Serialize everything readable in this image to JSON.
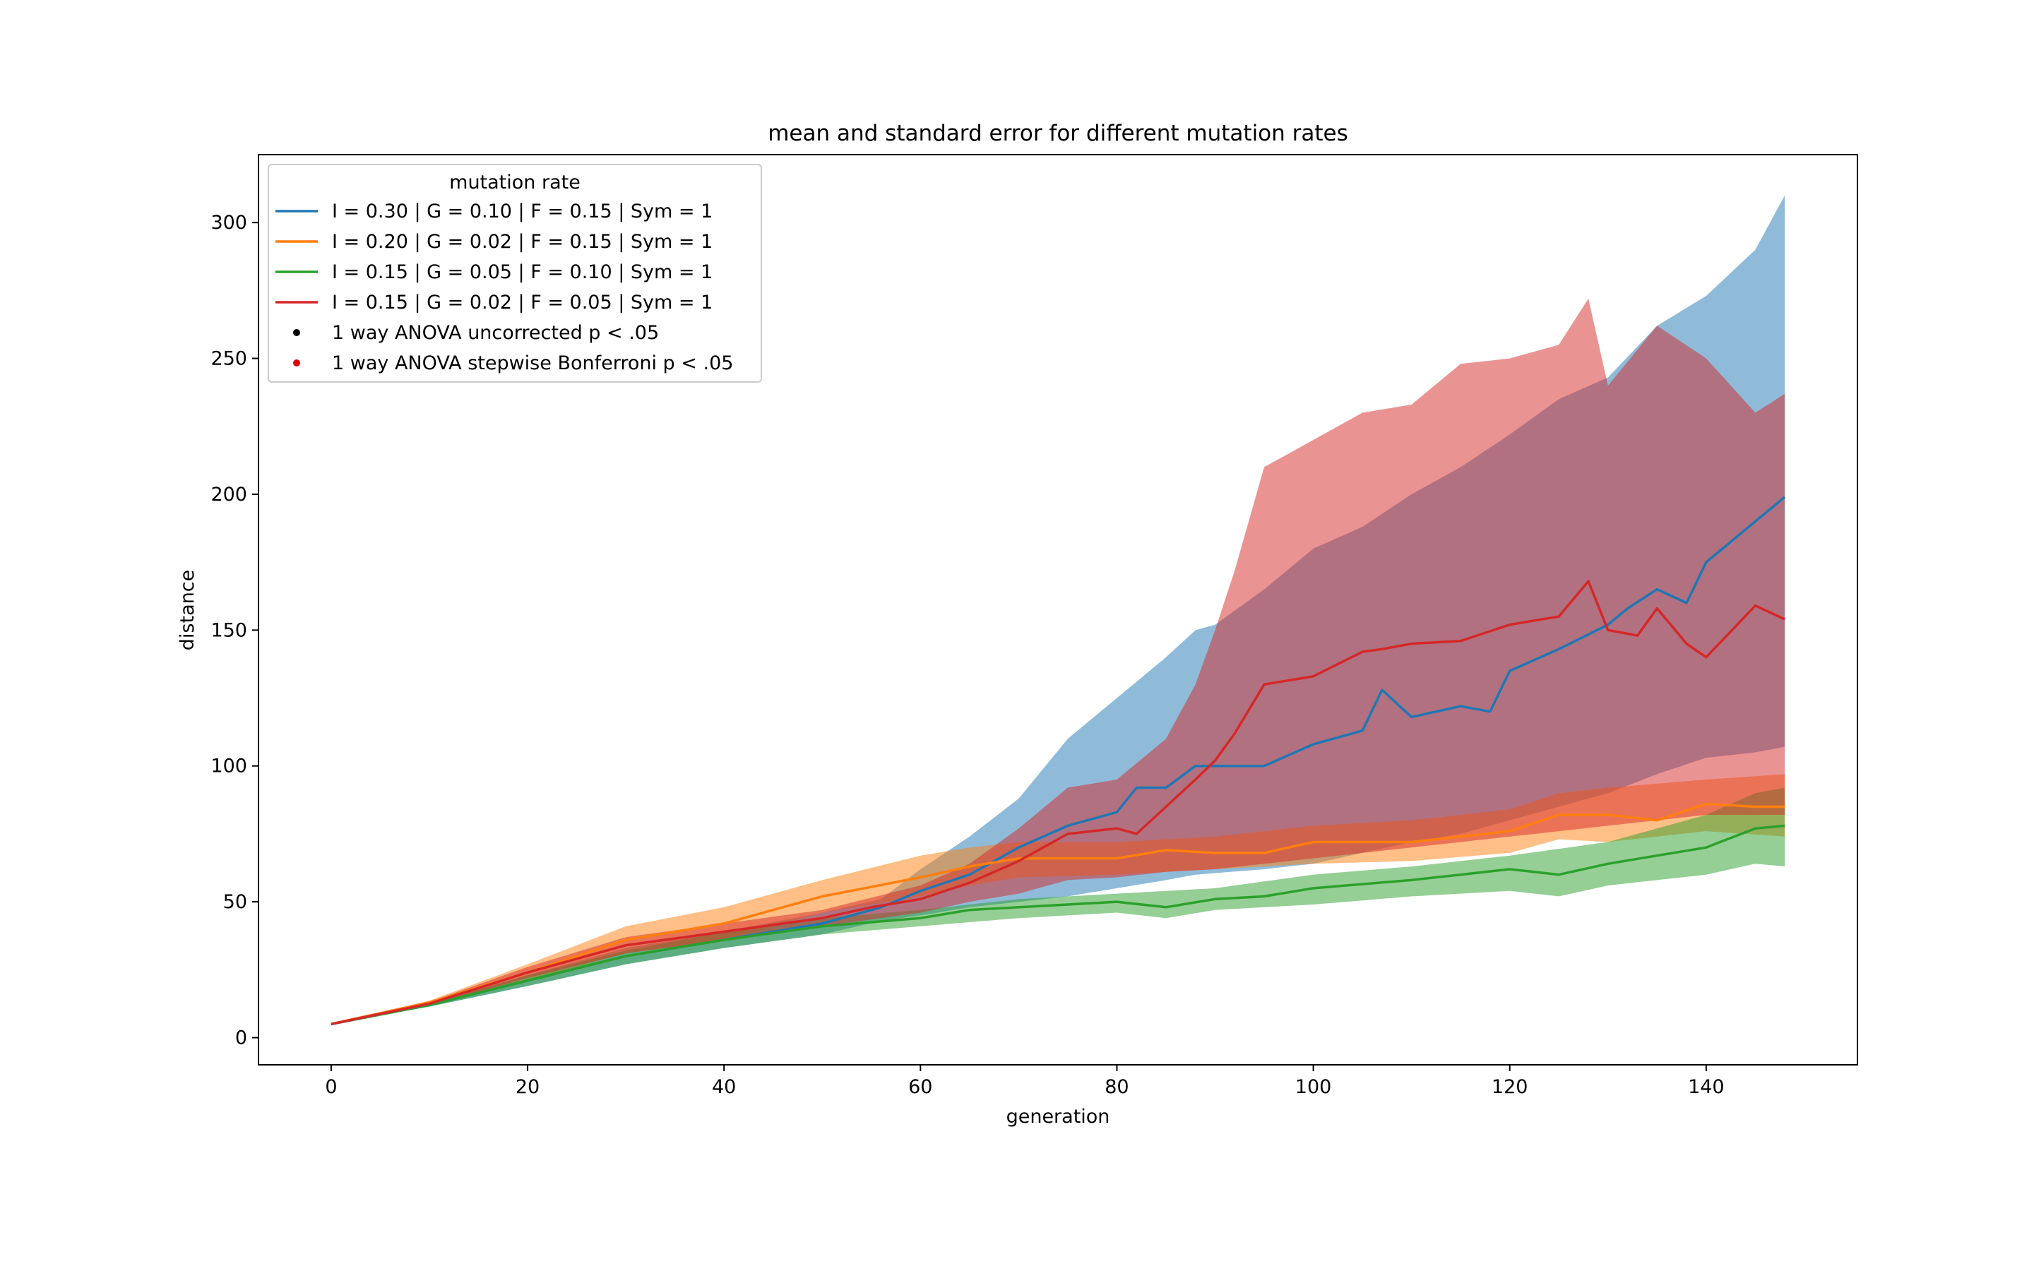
{
  "chart_data": {
    "type": "line",
    "title": "mean and standard error for different mutation rates",
    "xlabel": "generation",
    "ylabel": "distance",
    "xlim": [
      -7.4,
      155.4
    ],
    "ylim": [
      -10,
      325
    ],
    "xticks": [
      0,
      20,
      40,
      60,
      80,
      100,
      120,
      140
    ],
    "yticks": [
      0,
      50,
      100,
      150,
      200,
      250,
      300
    ],
    "grid": false,
    "legend": {
      "title": "mutation rate",
      "placement": "upper-left",
      "markers": [
        {
          "label": "1 way ANOVA uncorrected p < .05",
          "color": "#000000"
        },
        {
          "label": "1 way ANOVA stepwise Bonferroni p < .05",
          "color": "#e00000"
        }
      ]
    },
    "series": [
      {
        "name": "I = 0.30 | G = 0.10 | F = 0.15 | Sym = 1",
        "color": "#1f77b4",
        "band_opacity": 0.5,
        "mean_knots": [
          [
            0,
            5
          ],
          [
            10,
            12
          ],
          [
            20,
            21
          ],
          [
            30,
            30
          ],
          [
            40,
            36
          ],
          [
            50,
            42
          ],
          [
            56,
            48
          ],
          [
            60,
            54
          ],
          [
            65,
            60
          ],
          [
            70,
            70
          ],
          [
            75,
            78
          ],
          [
            80,
            83
          ],
          [
            82,
            92
          ],
          [
            85,
            92
          ],
          [
            88,
            100
          ],
          [
            95,
            100
          ],
          [
            100,
            108
          ],
          [
            105,
            113
          ],
          [
            107,
            128
          ],
          [
            110,
            118
          ],
          [
            115,
            122
          ],
          [
            118,
            120
          ],
          [
            120,
            135
          ],
          [
            125,
            143
          ],
          [
            130,
            152
          ],
          [
            132,
            158
          ],
          [
            135,
            165
          ],
          [
            138,
            160
          ],
          [
            140,
            175
          ],
          [
            145,
            190
          ],
          [
            148,
            199
          ]
        ],
        "upper_knots": [
          [
            0,
            5
          ],
          [
            10,
            12.6
          ],
          [
            20,
            23
          ],
          [
            30,
            33
          ],
          [
            40,
            39
          ],
          [
            50,
            46
          ],
          [
            56,
            51
          ],
          [
            60,
            62
          ],
          [
            65,
            74
          ],
          [
            70,
            88
          ],
          [
            75,
            110
          ],
          [
            80,
            125
          ],
          [
            85,
            140
          ],
          [
            88,
            150
          ],
          [
            90,
            152
          ],
          [
            95,
            165
          ],
          [
            100,
            180
          ],
          [
            105,
            188
          ],
          [
            110,
            200
          ],
          [
            115,
            210
          ],
          [
            120,
            222
          ],
          [
            125,
            235
          ],
          [
            130,
            243
          ],
          [
            135,
            262
          ],
          [
            140,
            273
          ],
          [
            145,
            290
          ],
          [
            148,
            310
          ]
        ],
        "lower_knots": [
          [
            0,
            5
          ],
          [
            10,
            11.4
          ],
          [
            20,
            19
          ],
          [
            30,
            27
          ],
          [
            40,
            33
          ],
          [
            50,
            38
          ],
          [
            56,
            43
          ],
          [
            60,
            45
          ],
          [
            65,
            48
          ],
          [
            70,
            50
          ],
          [
            75,
            52
          ],
          [
            80,
            55
          ],
          [
            85,
            58
          ],
          [
            88,
            60
          ],
          [
            95,
            62
          ],
          [
            100,
            64
          ],
          [
            105,
            68
          ],
          [
            110,
            72
          ],
          [
            115,
            75
          ],
          [
            120,
            80
          ],
          [
            125,
            85
          ],
          [
            130,
            90
          ],
          [
            135,
            97
          ],
          [
            140,
            103
          ],
          [
            145,
            105
          ],
          [
            148,
            107
          ]
        ]
      },
      {
        "name": "I = 0.20 | G = 0.02 | F = 0.15 | Sym = 1",
        "color": "#ff7f0e",
        "band_opacity": 0.5,
        "mean_knots": [
          [
            0,
            5
          ],
          [
            10,
            13
          ],
          [
            20,
            24
          ],
          [
            30,
            36
          ],
          [
            40,
            42
          ],
          [
            50,
            52
          ],
          [
            60,
            59
          ],
          [
            65,
            63
          ],
          [
            70,
            66
          ],
          [
            80,
            66
          ],
          [
            85,
            69
          ],
          [
            90,
            68
          ],
          [
            95,
            68
          ],
          [
            100,
            72
          ],
          [
            110,
            72
          ],
          [
            115,
            74
          ],
          [
            120,
            76
          ],
          [
            125,
            82
          ],
          [
            130,
            82
          ],
          [
            135,
            80
          ],
          [
            140,
            86
          ],
          [
            145,
            85
          ],
          [
            148,
            85
          ]
        ],
        "upper_knots": [
          [
            0,
            5
          ],
          [
            10,
            13.6
          ],
          [
            20,
            27
          ],
          [
            30,
            41
          ],
          [
            40,
            48
          ],
          [
            50,
            58
          ],
          [
            60,
            67
          ],
          [
            65,
            70
          ],
          [
            70,
            72
          ],
          [
            80,
            72
          ],
          [
            90,
            74
          ],
          [
            100,
            78
          ],
          [
            110,
            80
          ],
          [
            120,
            84
          ],
          [
            125,
            90
          ],
          [
            130,
            92
          ],
          [
            140,
            95
          ],
          [
            148,
            97
          ]
        ],
        "lower_knots": [
          [
            0,
            5
          ],
          [
            10,
            12.4
          ],
          [
            20,
            21
          ],
          [
            30,
            31
          ],
          [
            40,
            36
          ],
          [
            50,
            46
          ],
          [
            60,
            52
          ],
          [
            65,
            56
          ],
          [
            70,
            59
          ],
          [
            80,
            60
          ],
          [
            90,
            62
          ],
          [
            100,
            64
          ],
          [
            110,
            65
          ],
          [
            120,
            68
          ],
          [
            125,
            73
          ],
          [
            130,
            72
          ],
          [
            140,
            76
          ],
          [
            148,
            74
          ]
        ]
      },
      {
        "name": "I = 0.15 | G = 0.05 | F = 0.10 | Sym = 1",
        "color": "#2ca02c",
        "band_opacity": 0.5,
        "mean_knots": [
          [
            0,
            5
          ],
          [
            10,
            12
          ],
          [
            20,
            21
          ],
          [
            30,
            30
          ],
          [
            40,
            36
          ],
          [
            50,
            41
          ],
          [
            60,
            44
          ],
          [
            65,
            47
          ],
          [
            70,
            48
          ],
          [
            75,
            49
          ],
          [
            80,
            50
          ],
          [
            85,
            48
          ],
          [
            90,
            51
          ],
          [
            95,
            52
          ],
          [
            100,
            55
          ],
          [
            110,
            58
          ],
          [
            120,
            62
          ],
          [
            125,
            60
          ],
          [
            130,
            64
          ],
          [
            135,
            67
          ],
          [
            140,
            70
          ],
          [
            145,
            77
          ],
          [
            148,
            78
          ]
        ],
        "upper_knots": [
          [
            0,
            5
          ],
          [
            10,
            12.5
          ],
          [
            20,
            23
          ],
          [
            30,
            32
          ],
          [
            40,
            39
          ],
          [
            50,
            44
          ],
          [
            60,
            47
          ],
          [
            70,
            51
          ],
          [
            80,
            53
          ],
          [
            90,
            55
          ],
          [
            100,
            60
          ],
          [
            110,
            63
          ],
          [
            120,
            67
          ],
          [
            130,
            72
          ],
          [
            140,
            82
          ],
          [
            145,
            90
          ],
          [
            148,
            92
          ]
        ],
        "lower_knots": [
          [
            0,
            5
          ],
          [
            10,
            11.5
          ],
          [
            20,
            19
          ],
          [
            30,
            27
          ],
          [
            40,
            33
          ],
          [
            50,
            38
          ],
          [
            60,
            41
          ],
          [
            70,
            44
          ],
          [
            80,
            46
          ],
          [
            85,
            44
          ],
          [
            90,
            47
          ],
          [
            100,
            49
          ],
          [
            110,
            52
          ],
          [
            120,
            54
          ],
          [
            125,
            52
          ],
          [
            130,
            56
          ],
          [
            140,
            60
          ],
          [
            145,
            64
          ],
          [
            148,
            63
          ]
        ]
      },
      {
        "name": "I = 0.15 | G = 0.02 | F = 0.05 | Sym = 1",
        "color": "#d62728",
        "band_opacity": 0.5,
        "mean_knots": [
          [
            0,
            5
          ],
          [
            10,
            12.5
          ],
          [
            20,
            24
          ],
          [
            30,
            34
          ],
          [
            40,
            39
          ],
          [
            50,
            44
          ],
          [
            55,
            48
          ],
          [
            60,
            51
          ],
          [
            65,
            57
          ],
          [
            70,
            65
          ],
          [
            75,
            75
          ],
          [
            80,
            77
          ],
          [
            82,
            75
          ],
          [
            85,
            85
          ],
          [
            88,
            95
          ],
          [
            90,
            102
          ],
          [
            92,
            112
          ],
          [
            95,
            130
          ],
          [
            100,
            133
          ],
          [
            105,
            142
          ],
          [
            107,
            143
          ],
          [
            110,
            145
          ],
          [
            115,
            146
          ],
          [
            120,
            152
          ],
          [
            125,
            155
          ],
          [
            128,
            168
          ],
          [
            130,
            150
          ],
          [
            133,
            148
          ],
          [
            135,
            158
          ],
          [
            138,
            145
          ],
          [
            140,
            140
          ],
          [
            145,
            159
          ],
          [
            148,
            154
          ]
        ],
        "upper_knots": [
          [
            0,
            5
          ],
          [
            10,
            13.2
          ],
          [
            20,
            26
          ],
          [
            30,
            37
          ],
          [
            40,
            42
          ],
          [
            50,
            47
          ],
          [
            60,
            56
          ],
          [
            65,
            64
          ],
          [
            70,
            77
          ],
          [
            75,
            92
          ],
          [
            80,
            95
          ],
          [
            85,
            110
          ],
          [
            88,
            130
          ],
          [
            90,
            150
          ],
          [
            92,
            172
          ],
          [
            95,
            210
          ],
          [
            100,
            220
          ],
          [
            105,
            230
          ],
          [
            110,
            233
          ],
          [
            115,
            248
          ],
          [
            120,
            250
          ],
          [
            125,
            255
          ],
          [
            128,
            272
          ],
          [
            130,
            240
          ],
          [
            135,
            262
          ],
          [
            140,
            250
          ],
          [
            145,
            230
          ],
          [
            148,
            237
          ]
        ],
        "lower_knots": [
          [
            0,
            5
          ],
          [
            10,
            11.8
          ],
          [
            20,
            22
          ],
          [
            30,
            31
          ],
          [
            40,
            36
          ],
          [
            50,
            41
          ],
          [
            60,
            46
          ],
          [
            65,
            50
          ],
          [
            70,
            53
          ],
          [
            75,
            58
          ],
          [
            80,
            59
          ],
          [
            85,
            61
          ],
          [
            90,
            62
          ],
          [
            95,
            64
          ],
          [
            100,
            66
          ],
          [
            105,
            68
          ],
          [
            110,
            70
          ],
          [
            115,
            72
          ],
          [
            120,
            74
          ],
          [
            125,
            76
          ],
          [
            130,
            78
          ],
          [
            135,
            80
          ],
          [
            140,
            82
          ],
          [
            148,
            82
          ]
        ]
      }
    ]
  }
}
